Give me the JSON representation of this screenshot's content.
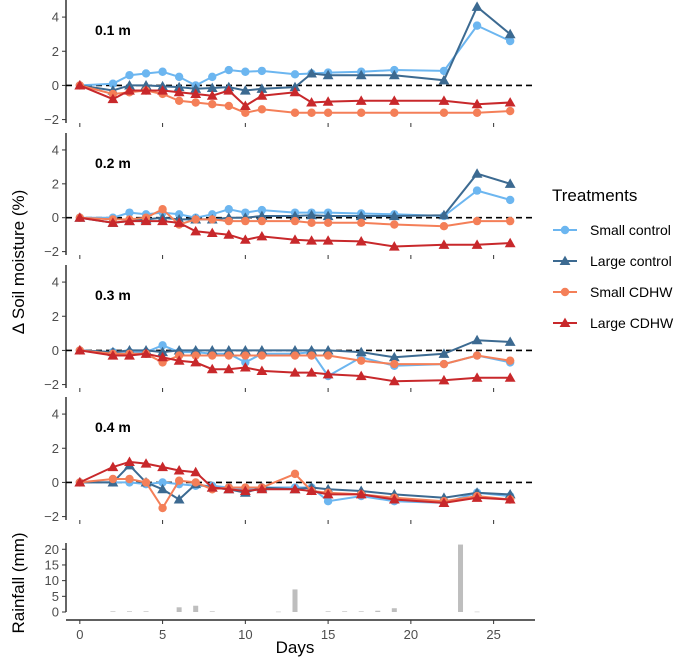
{
  "chart_data": [
    {
      "type": "line",
      "panel_label": "0.1 m",
      "ylim": [
        -2.2,
        5
      ],
      "y_ticks": [
        -2,
        0,
        2,
        4
      ],
      "xlim": [
        -1.5,
        27.5
      ],
      "x_ticks": [
        0,
        5,
        10,
        15,
        20,
        25
      ],
      "reference_line_y": 0,
      "series": [
        {
          "name": "Small control",
          "color": "#6CB6F0",
          "marker": "circle",
          "x": [
            0,
            2,
            3,
            4,
            5,
            6,
            7,
            8,
            9,
            10,
            11,
            13,
            14,
            15,
            17,
            19,
            22,
            24,
            26
          ],
          "y": [
            0,
            0.1,
            0.6,
            0.7,
            0.8,
            0.5,
            0,
            0.5,
            0.9,
            0.8,
            0.85,
            0.65,
            0.7,
            0.75,
            0.8,
            0.9,
            0.85,
            3.5,
            2.6
          ]
        },
        {
          "name": "Large control",
          "color": "#3C6A91",
          "marker": "triangle",
          "x": [
            0,
            2,
            3,
            4,
            5,
            6,
            7,
            8,
            9,
            10,
            11,
            13,
            14,
            15,
            17,
            19,
            22,
            24,
            26
          ],
          "y": [
            0,
            -0.3,
            0,
            0,
            -0.05,
            -0.1,
            -0.2,
            -0.15,
            -0.1,
            -0.3,
            -0.2,
            -0.1,
            0.7,
            0.6,
            0.6,
            0.6,
            0.3,
            4.6,
            3
          ]
        },
        {
          "name": "Small CDHW",
          "color": "#F47F58",
          "marker": "circle",
          "x": [
            0,
            2,
            3,
            4,
            5,
            6,
            7,
            8,
            9,
            10,
            11,
            13,
            14,
            15,
            17,
            19,
            22,
            24,
            26
          ],
          "y": [
            0,
            -0.5,
            -0.4,
            -0.3,
            -0.5,
            -0.9,
            -1,
            -1.1,
            -1.2,
            -1.6,
            -1.4,
            -1.6,
            -1.6,
            -1.6,
            -1.6,
            -1.6,
            -1.6,
            -1.6,
            -1.5
          ]
        },
        {
          "name": "Large CDHW",
          "color": "#C8282B",
          "marker": "triangle",
          "x": [
            0,
            2,
            3,
            4,
            5,
            6,
            7,
            8,
            9,
            10,
            11,
            13,
            14,
            15,
            17,
            19,
            22,
            24,
            26
          ],
          "y": [
            0,
            -0.8,
            -0.3,
            -0.3,
            -0.3,
            -0.4,
            -0.5,
            -0.6,
            -0.3,
            -1.2,
            -0.6,
            -0.4,
            -1,
            -0.95,
            -0.9,
            -0.9,
            -0.9,
            -1.1,
            -1
          ]
        }
      ]
    },
    {
      "type": "line",
      "panel_label": "0.2 m",
      "ylim": [
        -2.2,
        5
      ],
      "y_ticks": [
        -2,
        0,
        2,
        4
      ],
      "xlim": [
        -1.5,
        27.5
      ],
      "x_ticks": [
        0,
        5,
        10,
        15,
        20,
        25
      ],
      "reference_line_y": 0,
      "series": [
        {
          "name": "Small control",
          "color": "#6CB6F0",
          "marker": "circle",
          "x": [
            0,
            2,
            3,
            4,
            5,
            6,
            7,
            8,
            9,
            10,
            11,
            13,
            14,
            15,
            17,
            19,
            22,
            24,
            26
          ],
          "y": [
            0,
            0,
            0.3,
            0.2,
            0.3,
            0.2,
            0,
            0.2,
            0.5,
            0.3,
            0.45,
            0.3,
            0.3,
            0.3,
            0.25,
            0.2,
            0.1,
            1.6,
            1.05
          ]
        },
        {
          "name": "Large control",
          "color": "#3C6A91",
          "marker": "triangle",
          "x": [
            0,
            2,
            3,
            4,
            5,
            6,
            7,
            8,
            9,
            10,
            11,
            13,
            14,
            15,
            17,
            19,
            22,
            24,
            26
          ],
          "y": [
            0,
            -0.3,
            -0.2,
            -0.1,
            0,
            -0.1,
            -0.1,
            -0.1,
            0,
            0,
            0.1,
            0.1,
            0.15,
            0.1,
            0.1,
            0.1,
            0.15,
            2.6,
            2
          ]
        },
        {
          "name": "Small CDHW",
          "color": "#F47F58",
          "marker": "circle",
          "x": [
            0,
            2,
            3,
            4,
            5,
            6,
            7,
            8,
            9,
            10,
            11,
            13,
            14,
            15,
            17,
            19,
            22,
            24,
            26
          ],
          "y": [
            0,
            -0.1,
            -0.1,
            0,
            0.5,
            -0.4,
            -0.1,
            -0.1,
            -0.2,
            -0.2,
            -0.2,
            -0.2,
            -0.3,
            -0.3,
            -0.3,
            -0.4,
            -0.5,
            -0.2,
            -0.2
          ]
        },
        {
          "name": "Large CDHW",
          "color": "#C8282B",
          "marker": "triangle",
          "x": [
            0,
            2,
            3,
            4,
            5,
            6,
            7,
            8,
            9,
            10,
            11,
            13,
            14,
            15,
            17,
            19,
            22,
            24,
            26
          ],
          "y": [
            0,
            -0.3,
            -0.2,
            -0.2,
            -0.2,
            -0.3,
            -0.8,
            -0.9,
            -1,
            -1.3,
            -1.1,
            -1.3,
            -1.35,
            -1.35,
            -1.4,
            -1.7,
            -1.6,
            -1.6,
            -1.5
          ]
        }
      ]
    },
    {
      "type": "line",
      "panel_label": "0.3 m",
      "ylim": [
        -2.2,
        5
      ],
      "y_ticks": [
        -2,
        0,
        2,
        4
      ],
      "xlim": [
        -1.5,
        27.5
      ],
      "x_ticks": [
        0,
        5,
        10,
        15,
        20,
        25
      ],
      "reference_line_y": 0,
      "series": [
        {
          "name": "Small control",
          "color": "#6CB6F0",
          "marker": "circle",
          "x": [
            0,
            2,
            3,
            4,
            5,
            6,
            7,
            8,
            9,
            10,
            11,
            13,
            14,
            15,
            17,
            19,
            22,
            24,
            26
          ],
          "y": [
            0,
            -0.1,
            -0.1,
            -0.1,
            0.3,
            -0.1,
            -0.1,
            -0.2,
            -0.2,
            -0.7,
            -0.2,
            -0.2,
            -0.1,
            -1.5,
            -0.4,
            -0.9,
            -0.8,
            -0.3,
            -0.7
          ]
        },
        {
          "name": "Large control",
          "color": "#3C6A91",
          "marker": "triangle",
          "x": [
            0,
            2,
            3,
            4,
            5,
            6,
            7,
            8,
            9,
            10,
            11,
            13,
            14,
            15,
            17,
            19,
            22,
            24,
            26
          ],
          "y": [
            0,
            -0.1,
            0,
            0,
            -0.1,
            0,
            0,
            0,
            0,
            0,
            0,
            0,
            0,
            0,
            -0.1,
            -0.4,
            -0.2,
            0.6,
            0.5
          ]
        },
        {
          "name": "Small CDHW",
          "color": "#F47F58",
          "marker": "circle",
          "x": [
            0,
            2,
            3,
            4,
            5,
            6,
            7,
            8,
            9,
            10,
            11,
            13,
            14,
            15,
            17,
            19,
            22,
            24,
            26
          ],
          "y": [
            0,
            -0.2,
            -0.2,
            -0.2,
            -0.7,
            -0.3,
            -0.3,
            -0.3,
            -0.3,
            -0.3,
            -0.3,
            -0.3,
            -0.3,
            -0.3,
            -0.6,
            -0.8,
            -0.8,
            -0.3,
            -0.6
          ]
        },
        {
          "name": "Large CDHW",
          "color": "#C8282B",
          "marker": "triangle",
          "x": [
            0,
            2,
            3,
            4,
            5,
            6,
            7,
            8,
            9,
            10,
            11,
            13,
            14,
            15,
            17,
            19,
            22,
            24,
            26
          ],
          "y": [
            0,
            -0.3,
            -0.3,
            -0.2,
            -0.4,
            -0.6,
            -0.7,
            -1.1,
            -1.1,
            -1,
            -1.2,
            -1.3,
            -1.3,
            -1.4,
            -1.5,
            -1.8,
            -1.75,
            -1.6,
            -1.6
          ]
        }
      ]
    },
    {
      "type": "line",
      "panel_label": "0.4 m",
      "ylim": [
        -2.2,
        5
      ],
      "y_ticks": [
        -2,
        0,
        2,
        4
      ],
      "xlim": [
        -1.5,
        27.5
      ],
      "x_ticks": [
        0,
        5,
        10,
        15,
        20,
        25
      ],
      "reference_line_y": 0,
      "series": [
        {
          "name": "Small control",
          "color": "#6CB6F0",
          "marker": "circle",
          "x": [
            0,
            2,
            3,
            4,
            5,
            6,
            7,
            8,
            9,
            10,
            11,
            13,
            14,
            15,
            17,
            19,
            22,
            24,
            26
          ],
          "y": [
            0,
            0,
            0,
            -0.1,
            0,
            -0.1,
            -0.2,
            -0.2,
            -0.3,
            -0.4,
            -0.3,
            -0.3,
            -0.3,
            -1.1,
            -0.8,
            -1.1,
            -1.2,
            -0.6,
            -0.8
          ]
        },
        {
          "name": "Large control",
          "color": "#3C6A91",
          "marker": "triangle",
          "x": [
            0,
            2,
            3,
            4,
            5,
            6,
            7,
            8,
            9,
            10,
            11,
            13,
            14,
            15,
            17,
            19,
            22,
            24,
            26
          ],
          "y": [
            0,
            0,
            1,
            0,
            -0.4,
            -1,
            -0.1,
            -0.3,
            -0.4,
            -0.6,
            -0.3,
            -0.4,
            -0.3,
            -0.4,
            -0.5,
            -0.7,
            -0.9,
            -0.6,
            -0.7
          ]
        },
        {
          "name": "Small CDHW",
          "color": "#F47F58",
          "marker": "circle",
          "x": [
            0,
            2,
            3,
            4,
            5,
            6,
            7,
            8,
            9,
            10,
            11,
            13,
            14,
            15,
            17,
            19,
            22,
            24,
            26
          ],
          "y": [
            0,
            0.2,
            0.2,
            0,
            -1.5,
            0.1,
            0,
            -0.4,
            -0.3,
            -0.3,
            -0.3,
            0.5,
            -0.5,
            -0.6,
            -0.7,
            -0.9,
            -1.1,
            -0.8,
            -1
          ]
        },
        {
          "name": "Large CDHW",
          "color": "#C8282B",
          "marker": "triangle",
          "x": [
            0,
            2,
            3,
            4,
            5,
            6,
            7,
            8,
            9,
            10,
            11,
            13,
            14,
            15,
            17,
            19,
            22,
            24,
            26
          ],
          "y": [
            0,
            0.9,
            1.2,
            1.1,
            0.9,
            0.7,
            0.6,
            -0.3,
            -0.4,
            -0.5,
            -0.4,
            -0.4,
            -0.5,
            -0.7,
            -0.7,
            -1,
            -1.2,
            -0.9,
            -1
          ]
        }
      ]
    },
    {
      "type": "bar",
      "ylabel": "Rainfall (mm)",
      "xlabel": "Days",
      "ylim": [
        0,
        22
      ],
      "y_ticks": [
        0,
        5,
        10,
        15,
        20
      ],
      "xlim": [
        -1.5,
        27.5
      ],
      "x_ticks": [
        0,
        5,
        10,
        15,
        20,
        25
      ],
      "bar_color": "#BEBEBE",
      "x": [
        2,
        3,
        4,
        6,
        7,
        8,
        12,
        13,
        15,
        16,
        17,
        18,
        19,
        23,
        24
      ],
      "values": [
        0.2,
        0.2,
        0.2,
        1.5,
        2,
        0.2,
        0.1,
        7.2,
        0.2,
        0.2,
        0.2,
        0.4,
        1.2,
        21.5,
        0.1
      ]
    }
  ],
  "shared_ylabel": "Δ Soil moisture (%)",
  "legend": {
    "title": "Treatments",
    "placement": "right",
    "items": [
      {
        "label": "Small control",
        "color": "#6CB6F0",
        "marker": "circle"
      },
      {
        "label": "Large control",
        "color": "#3C6A91",
        "marker": "triangle"
      },
      {
        "label": "Small CDHW",
        "color": "#F47F58",
        "marker": "circle"
      },
      {
        "label": "Large CDHW",
        "color": "#C8282B",
        "marker": "triangle"
      }
    ]
  }
}
